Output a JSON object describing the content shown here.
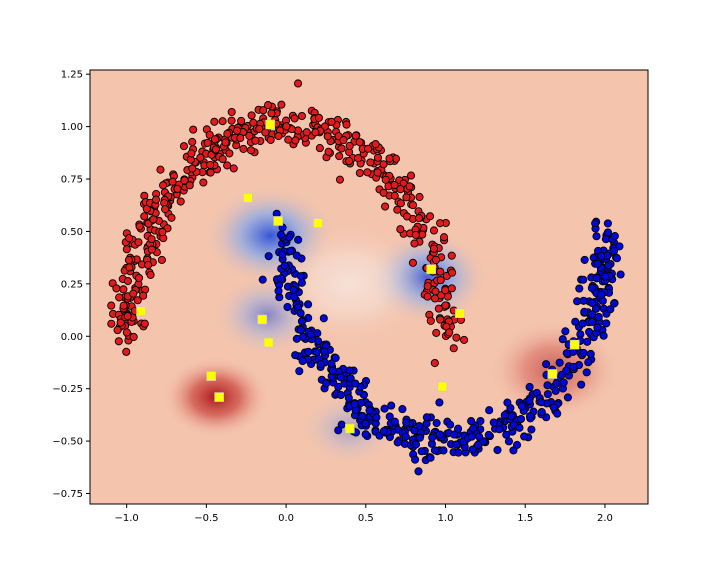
{
  "chart_data": {
    "type": "scatter",
    "title": "",
    "xlabel": "",
    "ylabel": "",
    "xlim": [
      -1.23,
      2.27
    ],
    "ylim": [
      -0.8,
      1.27
    ],
    "grid": false,
    "legend": "none",
    "x_ticks": [
      -1.0,
      -0.5,
      0.0,
      0.5,
      1.0,
      1.5,
      2.0
    ],
    "x_tick_labels": [
      "−1.0",
      "−0.5",
      "0.0",
      "0.5",
      "1.0",
      "1.5",
      "2.0"
    ],
    "y_ticks": [
      -0.75,
      -0.5,
      -0.25,
      0.0,
      0.25,
      0.5,
      0.75,
      1.0,
      1.25
    ],
    "y_tick_labels": [
      "−0.75",
      "−0.50",
      "−0.25",
      "0.00",
      "0.25",
      "0.50",
      "0.75",
      "1.00",
      "1.25"
    ],
    "background": {
      "description": "decision function heatmap, RdBu colormap",
      "base_color": "#f4c4ad",
      "blobs": [
        {
          "x": -0.44,
          "y": -0.29,
          "sigma": 0.13,
          "sign": "red",
          "strength": 0.95
        },
        {
          "x": -0.1,
          "y": 0.48,
          "sigma": 0.16,
          "sign": "blue",
          "strength": 0.95
        },
        {
          "x": -0.12,
          "y": 0.1,
          "sigma": 0.13,
          "sign": "blue",
          "strength": 0.55
        },
        {
          "x": 0.88,
          "y": 0.28,
          "sigma": 0.15,
          "sign": "blue",
          "strength": 0.9
        },
        {
          "x": 0.4,
          "y": -0.44,
          "sigma": 0.12,
          "sign": "blue",
          "strength": 0.35
        },
        {
          "x": 1.68,
          "y": -0.16,
          "sigma": 0.16,
          "sign": "red",
          "strength": 0.55
        },
        {
          "x": 0.4,
          "y": 0.25,
          "sigma": 0.2,
          "sign": "white",
          "strength": 0.6
        }
      ]
    },
    "series": [
      {
        "color": "#e31a1c",
        "edge_color": "#000000",
        "shape": "upper moon",
        "count": 500,
        "x_range": [
          -1.12,
          1.12
        ],
        "y_range": [
          -0.1,
          1.2
        ]
      },
      {
        "color": "#0008d8",
        "edge_color": "#000000",
        "shape": "lower moon",
        "count": 500,
        "x_range": [
          0.0,
          2.2
        ],
        "y_range": [
          -0.68,
          0.62
        ]
      },
      {
        "marker": "square",
        "color": "#ffff00",
        "edge_color": "#c8c8c8",
        "points": [
          [
            -0.1,
            1.01
          ],
          [
            -0.24,
            0.66
          ],
          [
            -0.05,
            0.55
          ],
          [
            0.2,
            0.54
          ],
          [
            -0.91,
            0.12
          ],
          [
            -0.15,
            0.08
          ],
          [
            -0.11,
            -0.03
          ],
          [
            -0.47,
            -0.19
          ],
          [
            -0.42,
            -0.29
          ],
          [
            0.4,
            -0.44
          ],
          [
            0.91,
            0.32
          ],
          [
            1.09,
            0.11
          ],
          [
            0.98,
            -0.24
          ],
          [
            1.67,
            -0.18
          ],
          [
            1.81,
            -0.04
          ]
        ]
      }
    ]
  }
}
